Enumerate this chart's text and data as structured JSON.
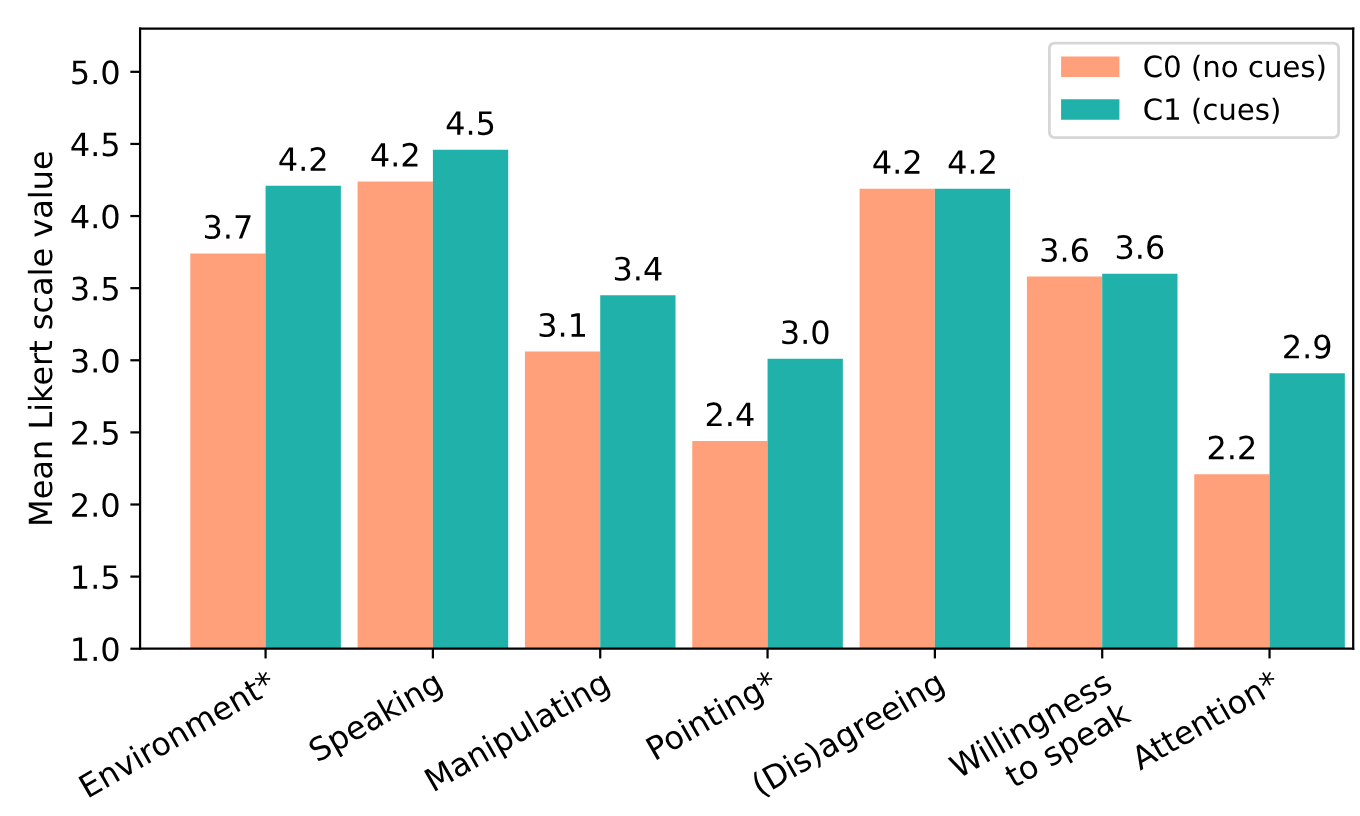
{
  "chart_data": {
    "type": "bar",
    "ylabel": "Mean Likert scale value",
    "categories": [
      "Environment*",
      "Speaking",
      "Manipulating",
      "Pointing*",
      "(Dis)agreeing",
      "Willingness\nto speak",
      "Attention*"
    ],
    "series": [
      {
        "name": "C0 (no cues)",
        "color": "#ffa07a",
        "values": [
          3.74,
          4.24,
          3.06,
          2.44,
          4.19,
          3.58,
          2.21
        ],
        "value_labels": [
          "3.7",
          "4.2",
          "3.1",
          "2.4",
          "4.2",
          "3.6",
          "2.2"
        ]
      },
      {
        "name": "C1 (cues)",
        "color": "#20b2aa",
        "values": [
          4.21,
          4.46,
          3.45,
          3.01,
          4.19,
          3.6,
          2.91
        ],
        "value_labels": [
          "4.2",
          "4.5",
          "3.4",
          "3.0",
          "4.2",
          "3.6",
          "2.9"
        ]
      }
    ],
    "ylim": [
      1.0,
      5.3
    ],
    "yticks": [
      "1.0",
      "1.5",
      "2.0",
      "2.5",
      "3.0",
      "3.5",
      "4.0",
      "4.5",
      "5.0"
    ],
    "legend": "top right"
  }
}
